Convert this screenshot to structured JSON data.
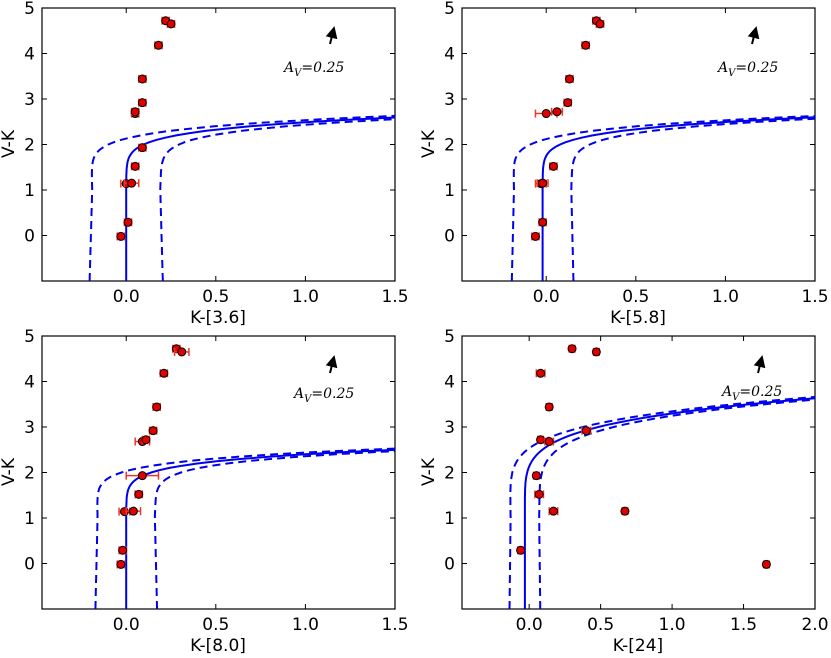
{
  "chart_data": [
    {
      "type": "scatter",
      "xlabel": "K-[3.6]",
      "ylabel": "V-K",
      "xlim": [
        -0.47,
        1.5
      ],
      "ylim": [
        -1.0,
        5.0
      ],
      "xticks": [
        0.0,
        0.5,
        1.0,
        1.5
      ],
      "xtick_labels": [
        "0.0",
        "0.5",
        "1.0",
        "1.5"
      ],
      "yticks": [
        0,
        1,
        2,
        3,
        4,
        5
      ],
      "ytick_labels": [
        "0",
        "1",
        "2",
        "3",
        "4",
        "5"
      ],
      "annotation": {
        "prefix": "A",
        "subscript": "V",
        "text": "=0.25",
        "arrow": "reddening-vector"
      },
      "curve": {
        "x0": 0.0,
        "a": 0.0045,
        "b": 0.0072,
        "offset": 0.19
      },
      "points": [
        {
          "x": -0.03,
          "y": -0.02,
          "xerr": 0.02
        },
        {
          "x": 0.01,
          "y": 0.29,
          "xerr": 0.02
        },
        {
          "x": 0.0,
          "y": 1.14,
          "xerr": 0.03
        },
        {
          "x": 0.03,
          "y": 1.15,
          "xerr": 0.04
        },
        {
          "x": 0.05,
          "y": 1.52,
          "xerr": 0.02
        },
        {
          "x": 0.09,
          "y": 1.93,
          "xerr": 0.02
        },
        {
          "x": 0.05,
          "y": 2.68,
          "xerr": 0.02
        },
        {
          "x": 0.05,
          "y": 2.72,
          "xerr": 0.02
        },
        {
          "x": 0.09,
          "y": 2.92,
          "xerr": 0.02
        },
        {
          "x": 0.09,
          "y": 3.44,
          "xerr": 0.02
        },
        {
          "x": 0.18,
          "y": 4.18,
          "xerr": 0.02
        },
        {
          "x": 0.22,
          "y": 4.72,
          "xerr": 0.02
        },
        {
          "x": 0.25,
          "y": 4.65,
          "xerr": 0.02
        }
      ]
    },
    {
      "type": "scatter",
      "xlabel": "K-[5.8]",
      "ylabel": "V-K",
      "xlim": [
        -0.47,
        1.5
      ],
      "ylim": [
        -1.0,
        5.0
      ],
      "xticks": [
        0.0,
        0.5,
        1.0,
        1.5
      ],
      "xtick_labels": [
        "0.0",
        "0.5",
        "1.0",
        "1.5"
      ],
      "yticks": [
        0,
        1,
        2,
        3,
        4,
        5
      ],
      "ytick_labels": [
        "0",
        "1",
        "2",
        "3",
        "4",
        "5"
      ],
      "annotation": {
        "prefix": "A",
        "subscript": "V",
        "text": "=0.25",
        "arrow": "reddening-vector"
      },
      "curve": {
        "x0": -0.02,
        "a": 0.0045,
        "b": 0.0072,
        "offset": 0.16
      },
      "points": [
        {
          "x": -0.06,
          "y": -0.02,
          "xerr": 0.02
        },
        {
          "x": -0.02,
          "y": 0.29,
          "xerr": 0.02
        },
        {
          "x": -0.03,
          "y": 1.14,
          "xerr": 0.03
        },
        {
          "x": -0.02,
          "y": 1.15,
          "xerr": 0.03
        },
        {
          "x": 0.04,
          "y": 1.52,
          "xerr": 0.02
        },
        {
          "x": 0.0,
          "y": 2.68,
          "xerr": 0.06
        },
        {
          "x": 0.06,
          "y": 2.72,
          "xerr": 0.03
        },
        {
          "x": 0.12,
          "y": 2.92,
          "xerr": 0.02
        },
        {
          "x": 0.13,
          "y": 3.44,
          "xerr": 0.02
        },
        {
          "x": 0.22,
          "y": 4.18,
          "xerr": 0.02
        },
        {
          "x": 0.28,
          "y": 4.72,
          "xerr": 0.02
        },
        {
          "x": 0.3,
          "y": 4.65,
          "xerr": 0.02
        }
      ]
    },
    {
      "type": "scatter",
      "xlabel": "K-[8.0]",
      "ylabel": "V-K",
      "xlim": [
        -0.47,
        1.5
      ],
      "ylim": [
        -1.0,
        5.0
      ],
      "xticks": [
        0.0,
        0.5,
        1.0,
        1.5
      ],
      "xtick_labels": [
        "0.0",
        "0.5",
        "1.0",
        "1.5"
      ],
      "yticks": [
        0,
        1,
        2,
        3,
        4,
        5
      ],
      "ytick_labels": [
        "0",
        "1",
        "2",
        "3",
        "4",
        "5"
      ],
      "annotation": {
        "prefix": "A",
        "subscript": "V",
        "text": "=0.25",
        "arrow": "reddening-vector"
      },
      "curve": {
        "x0": 0.0,
        "a": 0.0065,
        "b": 0.0093,
        "offset": 0.16
      },
      "points": [
        {
          "x": -0.03,
          "y": -0.02,
          "xerr": 0.02
        },
        {
          "x": -0.02,
          "y": 0.29,
          "xerr": 0.02
        },
        {
          "x": -0.01,
          "y": 1.14,
          "xerr": 0.03
        },
        {
          "x": 0.04,
          "y": 1.15,
          "xerr": 0.04
        },
        {
          "x": 0.07,
          "y": 1.52,
          "xerr": 0.02
        },
        {
          "x": 0.09,
          "y": 1.93,
          "xerr": 0.09
        },
        {
          "x": 0.09,
          "y": 2.68,
          "xerr": 0.04
        },
        {
          "x": 0.11,
          "y": 2.72,
          "xerr": 0.02
        },
        {
          "x": 0.15,
          "y": 2.92,
          "xerr": 0.02
        },
        {
          "x": 0.17,
          "y": 3.44,
          "xerr": 0.02
        },
        {
          "x": 0.21,
          "y": 4.18,
          "xerr": 0.02
        },
        {
          "x": 0.28,
          "y": 4.72,
          "xerr": 0.02
        },
        {
          "x": 0.31,
          "y": 4.65,
          "xerr": 0.04
        }
      ]
    },
    {
      "type": "scatter",
      "xlabel": "K-[24]",
      "ylabel": "V-K",
      "xlim": [
        -0.47,
        2.0
      ],
      "ylim": [
        -1.0,
        5.0
      ],
      "xticks": [
        0.0,
        0.5,
        1.0,
        1.5,
        2.0
      ],
      "xtick_labels": [
        "0.0",
        "0.5",
        "1.0",
        "1.5",
        "2.0"
      ],
      "yticks": [
        0,
        1,
        2,
        3,
        4,
        5
      ],
      "ytick_labels": [
        "0",
        "1",
        "2",
        "3",
        "4",
        "5"
      ],
      "annotation": {
        "prefix": "A",
        "subscript": "V",
        "text": "=0.25",
        "arrow": "reddening-vector"
      },
      "curve": {
        "x0": -0.03,
        "a": 1.4e-06,
        "b": 1.7e-06,
        "offset": 0.1
      },
      "points": [
        {
          "x": -0.06,
          "y": 0.29,
          "xerr": 0.02
        },
        {
          "x": 0.17,
          "y": 1.15,
          "xerr": 0.03
        },
        {
          "x": 0.67,
          "y": 1.15,
          "xerr": 0.02
        },
        {
          "x": 0.07,
          "y": 1.52,
          "xerr": 0.03
        },
        {
          "x": 0.05,
          "y": 1.93,
          "xerr": 0.02
        },
        {
          "x": 0.08,
          "y": 2.72,
          "xerr": 0.02
        },
        {
          "x": 0.14,
          "y": 2.68,
          "xerr": 0.03
        },
        {
          "x": 0.4,
          "y": 2.92,
          "xerr": 0.03
        },
        {
          "x": 0.14,
          "y": 3.44,
          "xerr": 0.02
        },
        {
          "x": 0.08,
          "y": 4.18,
          "xerr": 0.03
        },
        {
          "x": 0.3,
          "y": 4.72,
          "xerr": 0.02
        },
        {
          "x": 0.47,
          "y": 4.65,
          "xerr": 0.02
        },
        {
          "x": 1.66,
          "y": -0.02,
          "xerr": 0.02
        }
      ]
    }
  ]
}
